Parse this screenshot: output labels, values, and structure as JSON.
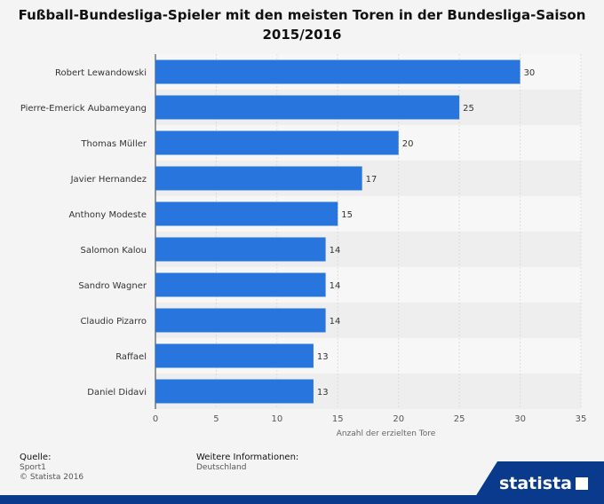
{
  "title": "Fußball-Bundesliga-Spieler mit den meisten Toren in der Bundesliga-Saison 2015/2016",
  "footer": {
    "source_head": "Quelle:",
    "source": "Sport1",
    "copyright": "© Statista 2016",
    "info_head": "Weitere Informationen:",
    "info": "Deutschland"
  },
  "brand": {
    "name": "statista"
  },
  "colors": {
    "bar": "#2876dd",
    "row_alt": "#eeeeee",
    "grid": "#dcdcdc",
    "background": "#f4f4f4"
  },
  "chart_data": {
    "type": "bar",
    "orientation": "horizontal",
    "categories": [
      "Robert Lewandowski",
      "Pierre-Emerick Aubameyang",
      "Thomas Müller",
      "Javier Hernandez",
      "Anthony Modeste",
      "Salomon Kalou",
      "Sandro Wagner",
      "Claudio Pizarro",
      "Raffael",
      "Daniel Didavi"
    ],
    "values": [
      30,
      25,
      20,
      17,
      15,
      14,
      14,
      14,
      13,
      13
    ],
    "xlabel": "Anzahl der erzielten Tore",
    "ylabel": "",
    "xlim": [
      0,
      35
    ],
    "xticks": [
      0,
      5,
      10,
      15,
      20,
      25,
      30,
      35
    ],
    "grid": true,
    "data_labels": true
  }
}
